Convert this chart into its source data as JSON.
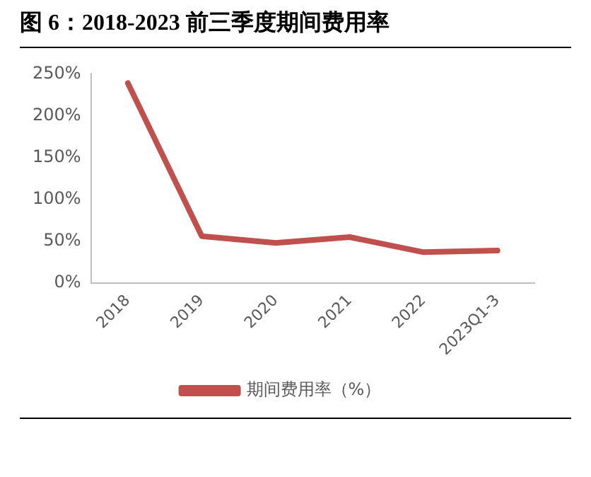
{
  "chart_data": {
    "type": "line",
    "title": "图 6：2018-2023 前三季度期间费用率",
    "categories": [
      "2018",
      "2019",
      "2020",
      "2021",
      "2022",
      "2023Q1-3"
    ],
    "series": [
      {
        "name": "期间费用率（%）",
        "color": "#c0504d",
        "values": [
          239,
          56,
          48,
          55,
          37,
          39
        ]
      }
    ],
    "ylim": [
      0,
      250
    ],
    "yticks": [
      {
        "value": 0,
        "label": "0%"
      },
      {
        "value": 50,
        "label": "50%"
      },
      {
        "value": 100,
        "label": "100%"
      },
      {
        "value": 150,
        "label": "150%"
      },
      {
        "value": 200,
        "label": "200%"
      },
      {
        "value": 250,
        "label": "250%"
      }
    ],
    "grid": false,
    "legend": "bottom",
    "marker": "none",
    "line_style": "solid"
  }
}
